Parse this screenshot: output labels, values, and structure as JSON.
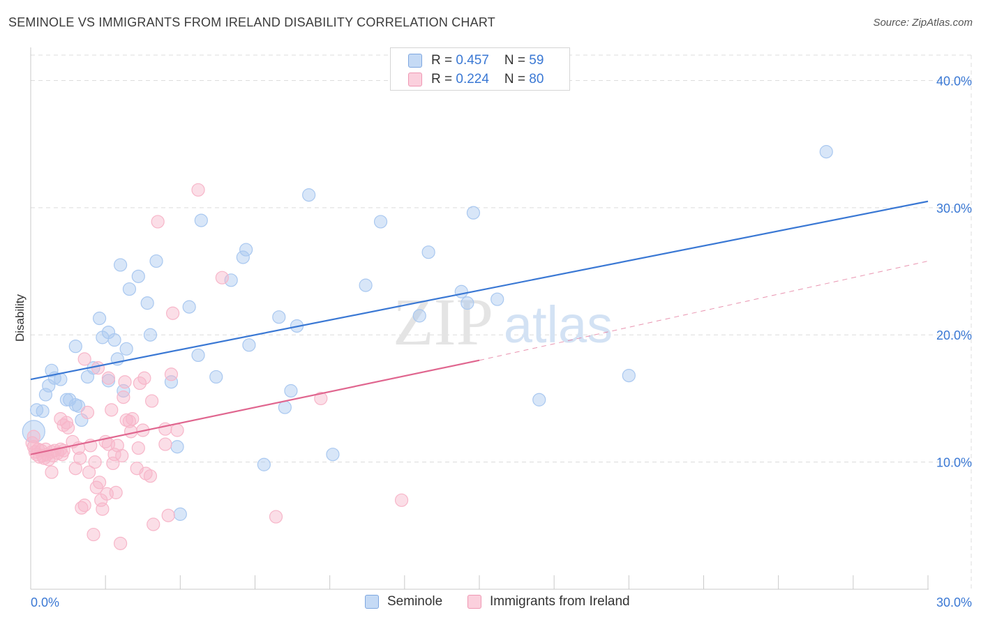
{
  "header": {
    "title": "SEMINOLE VS IMMIGRANTS FROM IRELAND DISABILITY CORRELATION CHART",
    "source": "Source: ZipAtlas.com"
  },
  "watermark": {
    "zip": "ZIP",
    "atlas": "atlas"
  },
  "stats_box": {
    "rows": [
      {
        "r_label": "R = ",
        "r_value": "0.457",
        "n_label": "N = ",
        "n_value": "59",
        "color": "#a9c8f0"
      },
      {
        "r_label": "R = ",
        "r_value": "0.224",
        "n_label": "N = ",
        "n_value": "80",
        "color": "#f7b6c9"
      }
    ]
  },
  "legend": {
    "items": [
      {
        "label": "Seminole",
        "color": "#a9c8f0"
      },
      {
        "label": "Immigrants from Ireland",
        "color": "#f7b6c9"
      }
    ]
  },
  "chart_data": {
    "type": "scatter",
    "title": "SEMINOLE VS IMMIGRANTS FROM IRELAND DISABILITY CORRELATION CHART",
    "xlabel": "",
    "ylabel": "Disability",
    "xlim": [
      0,
      30
    ],
    "ylim": [
      0,
      42
    ],
    "x_tick_labels": [
      "0.0%",
      "30.0%"
    ],
    "y_ticks": [
      10,
      20,
      30,
      40
    ],
    "y_tick_labels": [
      "10.0%",
      "20.0%",
      "30.0%",
      "40.0%"
    ],
    "grid": true,
    "legend_position": "bottom-center",
    "series": [
      {
        "name": "Seminole",
        "color": "#3a78d4",
        "fill": "#a9c8f0",
        "r": 0.457,
        "n": 59,
        "trend": {
          "x": [
            0,
            30
          ],
          "y": [
            16.5,
            30.5
          ],
          "style": "solid"
        },
        "points": [
          [
            0.1,
            12.4
          ],
          [
            0.2,
            14.1
          ],
          [
            0.4,
            14.0
          ],
          [
            0.5,
            15.3
          ],
          [
            0.6,
            16.0
          ],
          [
            0.7,
            17.2
          ],
          [
            0.8,
            16.6
          ],
          [
            1.0,
            16.5
          ],
          [
            1.2,
            14.9
          ],
          [
            1.3,
            14.9
          ],
          [
            1.5,
            14.5
          ],
          [
            1.6,
            14.4
          ],
          [
            1.7,
            13.3
          ],
          [
            1.5,
            19.1
          ],
          [
            1.9,
            16.7
          ],
          [
            2.1,
            17.4
          ],
          [
            2.3,
            21.3
          ],
          [
            2.4,
            19.8
          ],
          [
            2.6,
            16.4
          ],
          [
            2.6,
            20.2
          ],
          [
            2.8,
            19.6
          ],
          [
            2.9,
            18.1
          ],
          [
            3.0,
            25.5
          ],
          [
            3.1,
            15.6
          ],
          [
            3.2,
            18.9
          ],
          [
            3.3,
            23.6
          ],
          [
            3.6,
            24.6
          ],
          [
            3.9,
            22.5
          ],
          [
            4.0,
            20.0
          ],
          [
            4.2,
            25.8
          ],
          [
            4.7,
            16.3
          ],
          [
            4.9,
            11.2
          ],
          [
            5.0,
            5.9
          ],
          [
            5.3,
            22.2
          ],
          [
            5.6,
            18.4
          ],
          [
            5.7,
            29.0
          ],
          [
            6.2,
            16.7
          ],
          [
            6.7,
            24.3
          ],
          [
            7.1,
            26.1
          ],
          [
            7.2,
            26.7
          ],
          [
            7.3,
            19.2
          ],
          [
            7.8,
            9.8
          ],
          [
            8.3,
            21.4
          ],
          [
            8.5,
            14.3
          ],
          [
            8.7,
            15.6
          ],
          [
            8.9,
            20.7
          ],
          [
            9.3,
            31.0
          ],
          [
            10.1,
            10.6
          ],
          [
            11.2,
            23.9
          ],
          [
            11.7,
            28.9
          ],
          [
            13.0,
            21.5
          ],
          [
            13.3,
            26.5
          ],
          [
            14.4,
            23.4
          ],
          [
            14.6,
            22.5
          ],
          [
            14.8,
            29.6
          ],
          [
            15.6,
            22.8
          ],
          [
            17.0,
            14.9
          ],
          [
            20.0,
            16.8
          ],
          [
            26.6,
            34.4
          ]
        ]
      },
      {
        "name": "Immigrants from Ireland",
        "color": "#e0668f",
        "fill": "#f7b6c9",
        "r": 0.224,
        "n": 80,
        "trend": {
          "x": [
            0,
            15
          ],
          "y": [
            10.6,
            18.0
          ],
          "style": "solid",
          "dashed_extension": {
            "x": [
              15,
              30
            ],
            "y": [
              18.0,
              25.8
            ]
          }
        },
        "points": [
          [
            0.05,
            11.5
          ],
          [
            0.1,
            11.2
          ],
          [
            0.15,
            10.8
          ],
          [
            0.2,
            10.6
          ],
          [
            0.25,
            11.0
          ],
          [
            0.3,
            10.4
          ],
          [
            0.35,
            10.9
          ],
          [
            0.4,
            10.5
          ],
          [
            0.45,
            10.3
          ],
          [
            0.5,
            11.0
          ],
          [
            0.55,
            10.6
          ],
          [
            0.6,
            10.2
          ],
          [
            0.7,
            10.8
          ],
          [
            0.75,
            10.5
          ],
          [
            0.8,
            10.9
          ],
          [
            0.9,
            10.7
          ],
          [
            1.0,
            11.0
          ],
          [
            1.05,
            10.6
          ],
          [
            1.1,
            10.9
          ],
          [
            0.7,
            9.2
          ],
          [
            1.0,
            13.4
          ],
          [
            1.1,
            12.9
          ],
          [
            1.2,
            13.1
          ],
          [
            1.25,
            12.7
          ],
          [
            1.4,
            11.6
          ],
          [
            1.5,
            9.5
          ],
          [
            1.6,
            11.1
          ],
          [
            1.65,
            10.3
          ],
          [
            1.7,
            6.4
          ],
          [
            1.8,
            18.1
          ],
          [
            1.8,
            6.6
          ],
          [
            1.9,
            13.9
          ],
          [
            1.95,
            9.2
          ],
          [
            2.0,
            11.3
          ],
          [
            2.1,
            4.3
          ],
          [
            2.15,
            10.0
          ],
          [
            2.2,
            8.0
          ],
          [
            2.25,
            17.4
          ],
          [
            2.3,
            8.4
          ],
          [
            2.35,
            7.0
          ],
          [
            2.4,
            6.3
          ],
          [
            2.5,
            11.6
          ],
          [
            2.55,
            7.5
          ],
          [
            2.6,
            11.4
          ],
          [
            2.6,
            16.6
          ],
          [
            2.7,
            14.1
          ],
          [
            2.75,
            9.9
          ],
          [
            2.8,
            10.6
          ],
          [
            2.85,
            7.6
          ],
          [
            2.9,
            11.3
          ],
          [
            3.0,
            3.6
          ],
          [
            3.05,
            10.5
          ],
          [
            3.1,
            15.1
          ],
          [
            3.15,
            16.3
          ],
          [
            3.2,
            13.3
          ],
          [
            3.3,
            13.2
          ],
          [
            3.35,
            12.4
          ],
          [
            3.4,
            13.4
          ],
          [
            3.55,
            9.5
          ],
          [
            3.6,
            11.1
          ],
          [
            3.65,
            16.2
          ],
          [
            3.75,
            12.5
          ],
          [
            3.8,
            16.6
          ],
          [
            3.85,
            9.1
          ],
          [
            4.0,
            8.9
          ],
          [
            4.05,
            14.8
          ],
          [
            4.1,
            5.1
          ],
          [
            4.25,
            28.9
          ],
          [
            4.5,
            12.6
          ],
          [
            4.5,
            11.4
          ],
          [
            4.6,
            5.8
          ],
          [
            4.7,
            16.9
          ],
          [
            4.75,
            21.7
          ],
          [
            4.9,
            12.5
          ],
          [
            5.6,
            31.4
          ],
          [
            6.4,
            24.5
          ],
          [
            8.2,
            5.7
          ],
          [
            9.7,
            15.0
          ],
          [
            12.4,
            7.0
          ],
          [
            0.1,
            12.0
          ]
        ]
      }
    ]
  }
}
